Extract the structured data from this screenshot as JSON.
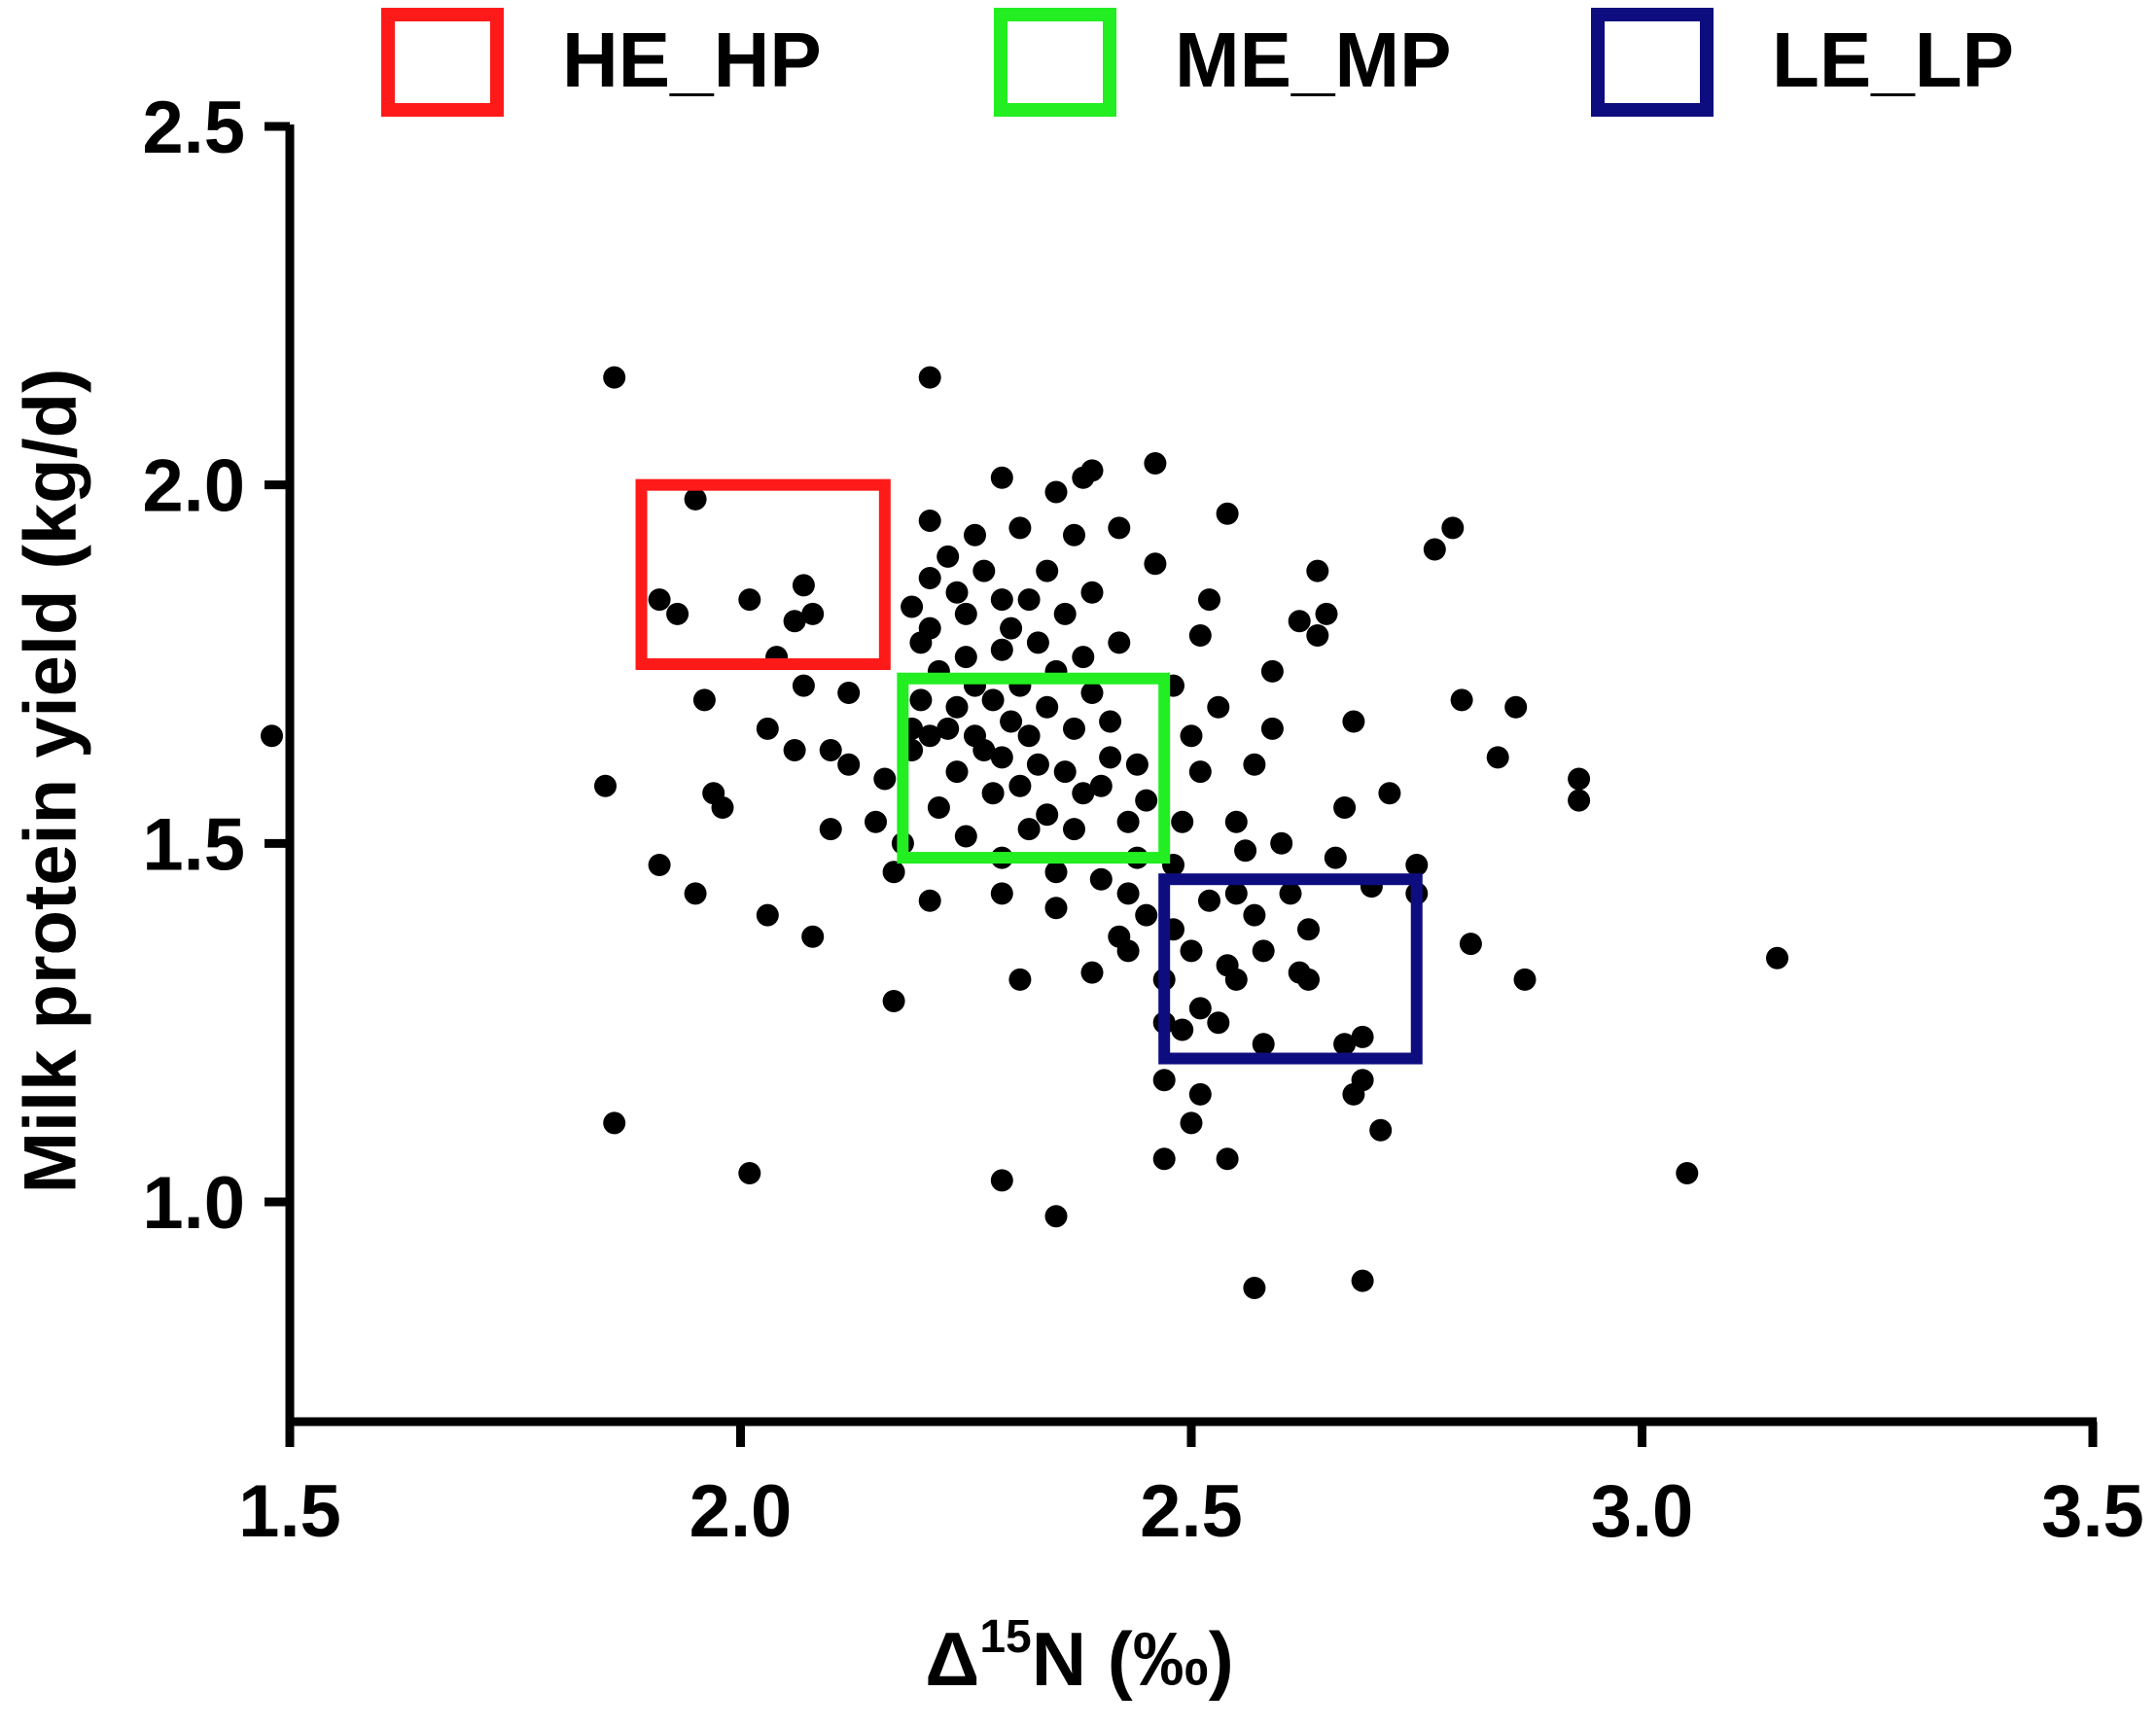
{
  "chart_data": {
    "type": "scatter",
    "xlabel": {
      "prefix": "Δ",
      "sup": "15",
      "suffix": "N (‰)"
    },
    "ylabel": "Milk protein yield (kg/d)",
    "xlim": [
      1.4,
      3.5
    ],
    "ylim": [
      0.8,
      2.5
    ],
    "x_ticks": [
      "1.5",
      "2.0",
      "2.5",
      "3.0",
      "3.5"
    ],
    "y_ticks": [
      "1.0",
      "1.5",
      "2.0",
      "2.5"
    ],
    "grid": false,
    "legend_position": "top",
    "marker_color": "#000000",
    "groups": [
      {
        "name": "HE_HP",
        "color": "#ff1a1a",
        "x_range": [
          1.89,
          2.16
        ],
        "y_range": [
          1.75,
          2.0
        ]
      },
      {
        "name": "ME_MP",
        "color": "#22ee22",
        "x_range": [
          2.18,
          2.47
        ],
        "y_range": [
          1.48,
          1.73
        ]
      },
      {
        "name": "LE_LP",
        "color": "#0d0d80",
        "x_range": [
          2.47,
          2.75
        ],
        "y_range": [
          1.2,
          1.45
        ]
      }
    ],
    "points": [
      [
        1.48,
        1.65
      ],
      [
        1.85,
        1.58
      ],
      [
        1.86,
        2.15
      ],
      [
        1.86,
        1.11
      ],
      [
        1.91,
        1.47
      ],
      [
        1.91,
        1.84
      ],
      [
        1.93,
        1.82
      ],
      [
        1.95,
        1.98
      ],
      [
        1.95,
        1.43
      ],
      [
        1.96,
        1.7
      ],
      [
        1.97,
        1.57
      ],
      [
        1.98,
        1.55
      ],
      [
        2.01,
        1.84
      ],
      [
        2.01,
        1.04
      ],
      [
        2.03,
        1.66
      ],
      [
        2.03,
        1.4
      ],
      [
        2.04,
        1.76
      ],
      [
        2.06,
        1.81
      ],
      [
        2.06,
        1.63
      ],
      [
        2.07,
        1.86
      ],
      [
        2.07,
        1.72
      ],
      [
        2.08,
        1.37
      ],
      [
        2.08,
        1.82
      ],
      [
        2.1,
        1.63
      ],
      [
        2.1,
        1.52
      ],
      [
        2.12,
        1.71
      ],
      [
        2.12,
        1.61
      ],
      [
        2.15,
        1.53
      ],
      [
        2.16,
        1.59
      ],
      [
        2.17,
        1.46
      ],
      [
        2.17,
        1.28
      ],
      [
        2.18,
        1.5
      ],
      [
        2.19,
        1.66
      ],
      [
        2.19,
        1.63
      ],
      [
        2.19,
        1.83
      ],
      [
        2.2,
        1.78
      ],
      [
        2.2,
        1.7
      ],
      [
        2.21,
        1.95
      ],
      [
        2.21,
        1.87
      ],
      [
        2.21,
        1.42
      ],
      [
        2.21,
        1.65
      ],
      [
        2.21,
        1.8
      ],
      [
        2.21,
        2.15
      ],
      [
        2.22,
        1.55
      ],
      [
        2.22,
        1.74
      ],
      [
        2.23,
        1.66
      ],
      [
        2.23,
        1.9
      ],
      [
        2.24,
        1.85
      ],
      [
        2.24,
        1.69
      ],
      [
        2.24,
        1.6
      ],
      [
        2.25,
        1.76
      ],
      [
        2.25,
        1.82
      ],
      [
        2.25,
        1.51
      ],
      [
        2.26,
        1.93
      ],
      [
        2.26,
        1.72
      ],
      [
        2.26,
        1.65
      ],
      [
        2.27,
        1.63
      ],
      [
        2.27,
        1.88
      ],
      [
        2.28,
        1.57
      ],
      [
        2.28,
        1.7
      ],
      [
        2.29,
        1.84
      ],
      [
        2.29,
        1.77
      ],
      [
        2.29,
        1.62
      ],
      [
        2.29,
        1.48
      ],
      [
        2.29,
        2.01
      ],
      [
        2.29,
        1.43
      ],
      [
        2.29,
        1.03
      ],
      [
        2.3,
        1.67
      ],
      [
        2.3,
        1.8
      ],
      [
        2.31,
        1.31
      ],
      [
        2.31,
        1.94
      ],
      [
        2.31,
        1.72
      ],
      [
        2.31,
        1.58
      ],
      [
        2.32,
        1.52
      ],
      [
        2.32,
        1.84
      ],
      [
        2.32,
        1.65
      ],
      [
        2.33,
        1.78
      ],
      [
        2.33,
        1.61
      ],
      [
        2.34,
        1.54
      ],
      [
        2.34,
        1.69
      ],
      [
        2.34,
        1.88
      ],
      [
        2.35,
        1.99
      ],
      [
        2.35,
        1.74
      ],
      [
        2.35,
        1.46
      ],
      [
        2.35,
        1.41
      ],
      [
        2.35,
        0.98
      ],
      [
        2.36,
        1.6
      ],
      [
        2.36,
        1.82
      ],
      [
        2.37,
        1.93
      ],
      [
        2.37,
        1.52
      ],
      [
        2.37,
        1.66
      ],
      [
        2.38,
        1.76
      ],
      [
        2.38,
        2.01
      ],
      [
        2.38,
        1.57
      ],
      [
        2.39,
        1.32
      ],
      [
        2.39,
        1.85
      ],
      [
        2.39,
        1.71
      ],
      [
        2.39,
        2.02
      ],
      [
        2.4,
        1.58
      ],
      [
        2.4,
        1.45
      ],
      [
        2.41,
        1.62
      ],
      [
        2.41,
        1.67
      ],
      [
        2.42,
        1.94
      ],
      [
        2.42,
        1.78
      ],
      [
        2.42,
        1.37
      ],
      [
        2.43,
        1.43
      ],
      [
        2.43,
        1.35
      ],
      [
        2.43,
        1.53
      ],
      [
        2.44,
        1.61
      ],
      [
        2.44,
        1.48
      ],
      [
        2.45,
        1.4
      ],
      [
        2.45,
        1.56
      ],
      [
        2.46,
        2.03
      ],
      [
        2.46,
        1.89
      ],
      [
        2.47,
        1.31
      ],
      [
        2.47,
        1.25
      ],
      [
        2.47,
        1.17
      ],
      [
        2.47,
        1.06
      ],
      [
        2.48,
        1.72
      ],
      [
        2.48,
        1.47
      ],
      [
        2.48,
        1.38
      ],
      [
        2.49,
        1.24
      ],
      [
        2.49,
        1.53
      ],
      [
        2.5,
        1.11
      ],
      [
        2.5,
        1.35
      ],
      [
        2.5,
        1.65
      ],
      [
        2.51,
        1.79
      ],
      [
        2.51,
        1.27
      ],
      [
        2.51,
        1.15
      ],
      [
        2.51,
        1.6
      ],
      [
        2.52,
        1.42
      ],
      [
        2.52,
        1.84
      ],
      [
        2.53,
        1.25
      ],
      [
        2.53,
        1.69
      ],
      [
        2.54,
        1.06
      ],
      [
        2.54,
        1.33
      ],
      [
        2.54,
        1.96
      ],
      [
        2.55,
        1.43
      ],
      [
        2.55,
        1.31
      ],
      [
        2.55,
        1.53
      ],
      [
        2.56,
        1.49
      ],
      [
        2.57,
        0.88
      ],
      [
        2.57,
        1.61
      ],
      [
        2.57,
        1.4
      ],
      [
        2.58,
        1.35
      ],
      [
        2.58,
        1.22
      ],
      [
        2.59,
        1.66
      ],
      [
        2.59,
        1.74
      ],
      [
        2.6,
        1.5
      ],
      [
        2.61,
        1.43
      ],
      [
        2.62,
        1.32
      ],
      [
        2.62,
        1.81
      ],
      [
        2.63,
        1.38
      ],
      [
        2.63,
        1.31
      ],
      [
        2.64,
        1.79
      ],
      [
        2.64,
        1.88
      ],
      [
        2.65,
        1.82
      ],
      [
        2.66,
        1.48
      ],
      [
        2.67,
        1.55
      ],
      [
        2.67,
        1.22
      ],
      [
        2.68,
        1.15
      ],
      [
        2.68,
        1.67
      ],
      [
        2.69,
        0.89
      ],
      [
        2.69,
        1.17
      ],
      [
        2.69,
        1.23
      ],
      [
        2.7,
        1.44
      ],
      [
        2.71,
        1.1
      ],
      [
        2.72,
        1.57
      ],
      [
        2.75,
        1.47
      ],
      [
        2.75,
        1.43
      ],
      [
        2.77,
        1.91
      ],
      [
        2.79,
        1.94
      ],
      [
        2.8,
        1.7
      ],
      [
        2.81,
        1.36
      ],
      [
        2.84,
        1.62
      ],
      [
        2.86,
        1.69
      ],
      [
        2.87,
        1.31
      ],
      [
        2.93,
        1.59
      ],
      [
        2.93,
        1.56
      ],
      [
        3.05,
        1.04
      ],
      [
        3.15,
        1.34
      ]
    ]
  }
}
